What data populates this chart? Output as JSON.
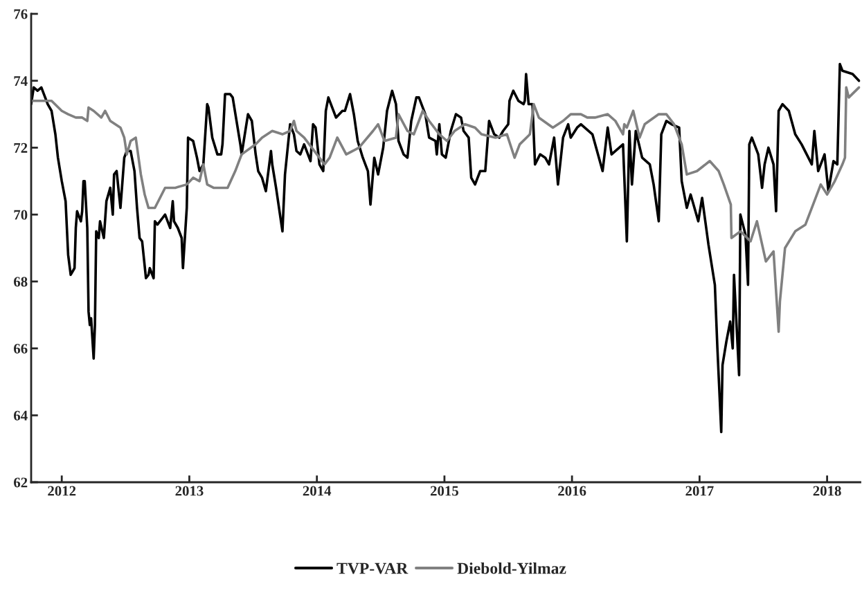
{
  "chart_data": {
    "type": "line",
    "xlim": [
      2011.76,
      2018.26
    ],
    "ylim": [
      62,
      76
    ],
    "xticks": [
      2012,
      2013,
      2014,
      2015,
      2016,
      2017,
      2018
    ],
    "yticks": [
      62,
      64,
      66,
      68,
      70,
      72,
      74,
      76
    ],
    "grid": false,
    "legend": "bottom",
    "line_style": "solid",
    "marker": "none",
    "series": [
      {
        "name": "TVP-VAR",
        "color": "#000000",
        "x": [
          2011.76,
          2011.78,
          2011.81,
          2011.84,
          2011.86,
          2011.89,
          2011.92,
          2011.95,
          2011.97,
          2012.0,
          2012.03,
          2012.04,
          2012.05,
          2012.07,
          2012.1,
          2012.11,
          2012.12,
          2012.15,
          2012.16,
          2012.17,
          2012.18,
          2012.2,
          2012.21,
          2012.22,
          2012.23,
          2012.25,
          2012.26,
          2012.27,
          2012.29,
          2012.3,
          2012.33,
          2012.35,
          2012.38,
          2012.4,
          2012.41,
          2012.43,
          2012.46,
          2012.49,
          2012.51,
          2012.54,
          2012.57,
          2012.59,
          2012.61,
          2012.63,
          2012.66,
          2012.68,
          2012.69,
          2012.72,
          2012.73,
          2012.75,
          2012.79,
          2012.81,
          2012.83,
          2012.85,
          2012.87,
          2012.88,
          2012.91,
          2012.94,
          2012.95,
          2012.98,
          2012.99,
          2013.03,
          2013.06,
          2013.08,
          2013.11,
          2013.14,
          2013.15,
          2013.18,
          2013.22,
          2013.25,
          2013.26,
          2013.28,
          2013.32,
          2013.34,
          2013.37,
          2013.4,
          2013.41,
          2013.46,
          2013.49,
          2013.52,
          2013.54,
          2013.57,
          2013.6,
          2013.64,
          2013.65,
          2013.68,
          2013.73,
          2013.75,
          2013.79,
          2013.82,
          2013.84,
          2013.87,
          2013.9,
          2013.95,
          2013.97,
          2013.99,
          2014.02,
          2014.05,
          2014.07,
          2014.09,
          2014.12,
          2014.15,
          2014.2,
          2014.22,
          2014.26,
          2014.29,
          2014.32,
          2014.36,
          2014.4,
          2014.42,
          2014.45,
          2014.48,
          2014.52,
          2014.55,
          2014.59,
          2014.62,
          2014.64,
          2014.68,
          2014.71,
          2014.74,
          2014.78,
          2014.8,
          2014.85,
          2014.88,
          2014.93,
          2014.94,
          2014.96,
          2014.98,
          2015.01,
          2015.05,
          2015.09,
          2015.13,
          2015.15,
          2015.19,
          2015.21,
          2015.24,
          2015.28,
          2015.32,
          2015.35,
          2015.39,
          2015.43,
          2015.46,
          2015.5,
          2015.51,
          2015.54,
          2015.58,
          2015.62,
          2015.63,
          2015.64,
          2015.66,
          2015.69,
          2015.71,
          2015.75,
          2015.79,
          2015.82,
          2015.86,
          2015.89,
          2015.93,
          2015.97,
          2015.99,
          2016.04,
          2016.07,
          2016.16,
          2016.24,
          2016.28,
          2016.31,
          2016.4,
          2016.43,
          2016.45,
          2016.47,
          2016.5,
          2016.55,
          2016.61,
          2016.64,
          2016.68,
          2016.7,
          2016.74,
          2016.78,
          2016.84,
          2016.86,
          2016.9,
          2016.93,
          2016.99,
          2017.02,
          2017.07,
          2017.12,
          2017.14,
          2017.17,
          2017.18,
          2017.21,
          2017.24,
          2017.26,
          2017.27,
          2017.31,
          2017.32,
          2017.36,
          2017.38,
          2017.39,
          2017.41,
          2017.46,
          2017.49,
          2017.51,
          2017.54,
          2017.58,
          2017.6,
          2017.62,
          2017.65,
          2017.7,
          2017.75,
          2017.8,
          2017.88,
          2017.9,
          2017.93,
          2017.98,
          2018.01,
          2018.05,
          2018.08,
          2018.1,
          2018.12,
          2018.2,
          2018.25
        ],
        "values": [
          73.3,
          73.8,
          73.7,
          73.8,
          73.6,
          73.3,
          73.1,
          72.4,
          71.7,
          71.0,
          70.4,
          69.6,
          68.8,
          68.2,
          68.4,
          69.6,
          70.1,
          69.8,
          70.1,
          71.0,
          71.0,
          69.6,
          67.1,
          66.7,
          66.9,
          65.7,
          66.7,
          69.5,
          69.3,
          69.8,
          69.3,
          70.4,
          70.8,
          70.0,
          71.2,
          71.3,
          70.2,
          71.7,
          71.9,
          71.9,
          71.3,
          70.2,
          69.3,
          69.2,
          68.1,
          68.2,
          68.4,
          68.1,
          69.8,
          69.7,
          69.9,
          70.0,
          69.8,
          69.6,
          70.4,
          69.8,
          69.6,
          69.3,
          68.4,
          70.2,
          72.3,
          72.2,
          71.7,
          71.3,
          71.5,
          73.3,
          73.2,
          72.3,
          71.8,
          71.8,
          72.1,
          73.6,
          73.6,
          73.5,
          72.8,
          72.1,
          71.8,
          73.0,
          72.8,
          71.8,
          71.3,
          71.1,
          70.7,
          71.9,
          71.5,
          70.8,
          69.5,
          71.2,
          72.7,
          72.4,
          71.9,
          71.8,
          72.1,
          71.6,
          72.7,
          72.6,
          71.5,
          71.3,
          73.1,
          73.5,
          73.2,
          72.9,
          73.1,
          73.1,
          73.6,
          73.0,
          72.2,
          71.7,
          71.3,
          70.3,
          71.7,
          71.2,
          72.0,
          73.1,
          73.7,
          73.3,
          72.2,
          71.8,
          71.7,
          72.8,
          73.5,
          73.5,
          73.0,
          72.3,
          72.2,
          71.8,
          72.7,
          71.8,
          71.7,
          72.5,
          73.0,
          72.9,
          72.5,
          72.3,
          71.1,
          70.9,
          71.3,
          71.3,
          72.8,
          72.4,
          72.3,
          72.5,
          72.7,
          73.4,
          73.7,
          73.4,
          73.3,
          73.4,
          74.2,
          73.3,
          73.3,
          71.5,
          71.8,
          71.7,
          71.5,
          72.3,
          70.9,
          72.3,
          72.7,
          72.3,
          72.6,
          72.7,
          72.4,
          71.3,
          72.6,
          71.8,
          72.1,
          69.2,
          72.5,
          70.9,
          72.5,
          71.7,
          71.5,
          70.9,
          69.8,
          72.4,
          72.8,
          72.7,
          72.6,
          71.0,
          70.2,
          70.6,
          69.8,
          70.5,
          69.1,
          67.9,
          66.0,
          63.5,
          65.5,
          66.2,
          66.8,
          66.0,
          68.2,
          65.2,
          70.0,
          69.4,
          67.9,
          72.1,
          72.3,
          71.8,
          70.8,
          71.5,
          72.0,
          71.5,
          70.1,
          73.1,
          73.3,
          73.1,
          72.4,
          72.1,
          71.5,
          72.5,
          71.3,
          71.8,
          70.7,
          71.6,
          71.5,
          74.5,
          74.3,
          74.2,
          74.0
        ]
      },
      {
        "name": "Diebold-Yilmaz",
        "color": "#808080",
        "x": [
          2011.76,
          2011.84,
          2011.92,
          2012.0,
          2012.05,
          2012.11,
          2012.16,
          2012.2,
          2012.21,
          2012.25,
          2012.31,
          2012.34,
          2012.38,
          2012.46,
          2012.49,
          2012.51,
          2012.54,
          2012.58,
          2012.62,
          2012.65,
          2012.68,
          2012.73,
          2012.81,
          2012.89,
          2012.98,
          2013.03,
          2013.08,
          2013.11,
          2013.14,
          2013.19,
          2013.25,
          2013.3,
          2013.36,
          2013.41,
          2013.52,
          2013.57,
          2013.65,
          2013.73,
          2013.79,
          2013.82,
          2013.84,
          2013.9,
          2014.06,
          2014.1,
          2014.16,
          2014.23,
          2014.33,
          2014.44,
          2014.48,
          2014.53,
          2014.62,
          2014.64,
          2014.71,
          2014.76,
          2014.83,
          2014.88,
          2014.96,
          2015.02,
          2015.08,
          2015.16,
          2015.24,
          2015.29,
          2015.4,
          2015.49,
          2015.55,
          2015.59,
          2015.67,
          2015.7,
          2015.74,
          2015.85,
          2015.93,
          2015.99,
          2016.07,
          2016.12,
          2016.18,
          2016.28,
          2016.34,
          2016.4,
          2016.41,
          2016.43,
          2016.48,
          2016.53,
          2016.57,
          2016.68,
          2016.74,
          2016.8,
          2016.86,
          2016.9,
          2016.98,
          2017.08,
          2017.15,
          2017.19,
          2017.245,
          2017.25,
          2017.32,
          2017.4,
          2017.45,
          2017.52,
          2017.58,
          2017.62,
          2017.63,
          2017.67,
          2017.75,
          2017.83,
          2017.9,
          2017.95,
          2018.0,
          2018.06,
          2018.12,
          2018.14,
          2018.15,
          2018.17,
          2018.25
        ],
        "values": [
          73.4,
          73.4,
          73.4,
          73.1,
          73.0,
          72.9,
          72.9,
          72.8,
          73.2,
          73.1,
          72.9,
          73.1,
          72.8,
          72.6,
          72.3,
          71.8,
          72.2,
          72.3,
          71.2,
          70.6,
          70.2,
          70.2,
          70.8,
          70.8,
          70.9,
          71.1,
          71.0,
          71.5,
          70.9,
          70.8,
          70.8,
          70.8,
          71.3,
          71.8,
          72.1,
          72.3,
          72.5,
          72.4,
          72.5,
          72.8,
          72.5,
          72.3,
          71.5,
          71.7,
          72.3,
          71.8,
          72.0,
          72.5,
          72.7,
          72.2,
          72.3,
          73.0,
          72.5,
          72.4,
          73.1,
          72.8,
          72.4,
          72.2,
          72.5,
          72.7,
          72.6,
          72.4,
          72.3,
          72.4,
          71.7,
          72.1,
          72.4,
          73.3,
          72.9,
          72.6,
          72.8,
          73.0,
          73.0,
          72.9,
          72.9,
          73.0,
          72.8,
          72.4,
          72.7,
          72.6,
          73.1,
          72.3,
          72.7,
          73.0,
          73.0,
          72.7,
          72.1,
          71.2,
          71.3,
          71.6,
          71.3,
          70.9,
          70.3,
          69.3,
          69.5,
          69.2,
          69.8,
          68.6,
          68.9,
          66.5,
          67.4,
          69.0,
          69.5,
          69.7,
          70.4,
          70.9,
          70.6,
          71.0,
          71.5,
          71.7,
          73.8,
          73.5,
          73.8
        ]
      }
    ]
  }
}
